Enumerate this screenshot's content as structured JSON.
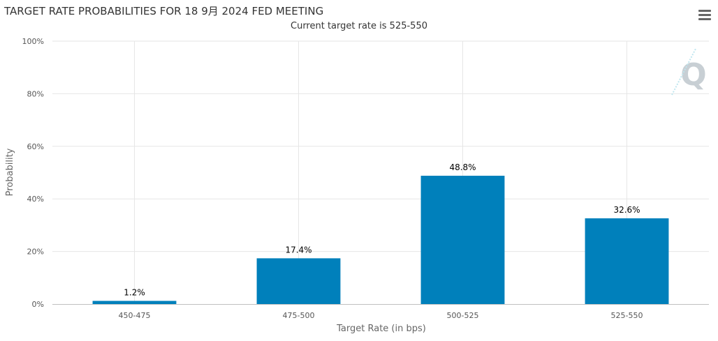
{
  "chart_data": {
    "type": "bar",
    "title": "TARGET RATE PROBABILITIES FOR 18 9月 2024 FED MEETING",
    "subtitle": "Current target rate is 525-550",
    "categories": [
      "450-475",
      "475-500",
      "500-525",
      "525-550"
    ],
    "values": [
      1.2,
      17.4,
      48.8,
      32.6
    ],
    "data_labels": [
      "1.2%",
      "17.4%",
      "48.8%",
      "32.6%"
    ],
    "xlabel": "Target Rate (in bps)",
    "ylabel": "Probability",
    "ylim": [
      0,
      100
    ],
    "yticks": [
      "0%",
      "20%",
      "40%",
      "60%",
      "80%",
      "100%"
    ],
    "ytick_values": [
      0,
      20,
      40,
      60,
      80,
      100
    ],
    "grid": true,
    "bar_color": "#0080bb"
  },
  "menu": {
    "icon": "hamburger-menu-icon"
  },
  "watermark": {
    "letter": "Q"
  }
}
